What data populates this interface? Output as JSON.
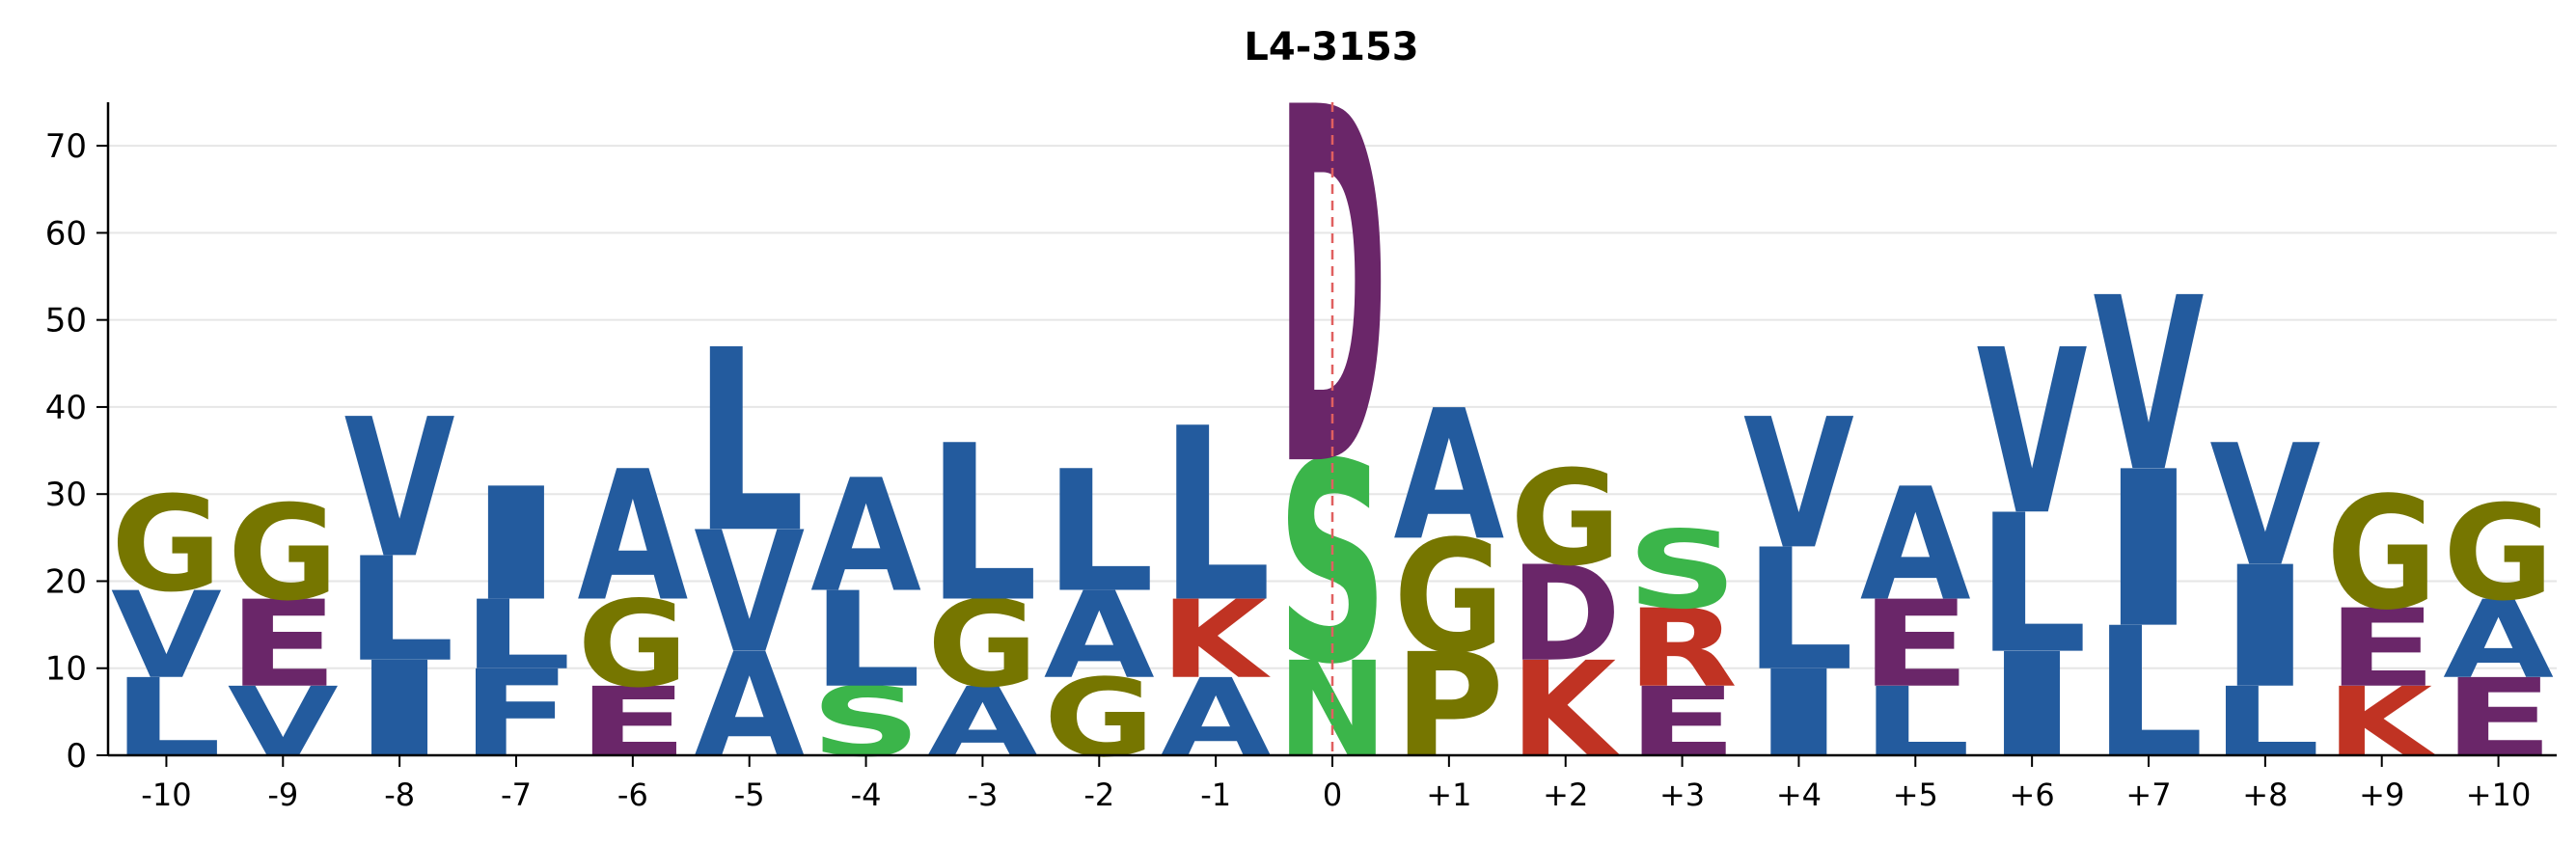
{
  "chart_data": {
    "type": "sequence-logo",
    "title": "L4-3153",
    "xlabel": "",
    "ylabel": "",
    "ylim": [
      0,
      75
    ],
    "yticks": [
      0,
      10,
      20,
      30,
      40,
      50,
      60,
      70
    ],
    "grid": "horizontal",
    "reference_line_at": "0",
    "colors": {
      "L": "#235b9e",
      "V": "#235b9e",
      "I": "#235b9e",
      "A": "#235b9e",
      "F": "#235b9e",
      "G": "#767600",
      "P": "#767600",
      "E": "#6a2669",
      "D": "#6a2669",
      "K": "#c03323",
      "R": "#c03323",
      "S": "#3bb54a",
      "N": "#3bb54a"
    },
    "positions": [
      {
        "label": "-10",
        "stack": [
          {
            "aa": "L",
            "value": 9
          },
          {
            "aa": "V",
            "value": 10
          },
          {
            "aa": "G",
            "value": 11
          }
        ]
      },
      {
        "label": "-9",
        "stack": [
          {
            "aa": "V",
            "value": 8
          },
          {
            "aa": "E",
            "value": 10
          },
          {
            "aa": "G",
            "value": 11
          }
        ]
      },
      {
        "label": "-8",
        "stack": [
          {
            "aa": "I",
            "value": 11
          },
          {
            "aa": "L",
            "value": 12
          },
          {
            "aa": "V",
            "value": 16
          }
        ]
      },
      {
        "label": "-7",
        "stack": [
          {
            "aa": "F",
            "value": 10
          },
          {
            "aa": "L",
            "value": 8
          },
          {
            "aa": "I",
            "value": 13
          }
        ]
      },
      {
        "label": "-6",
        "stack": [
          {
            "aa": "E",
            "value": 8
          },
          {
            "aa": "G",
            "value": 10
          },
          {
            "aa": "A",
            "value": 15
          }
        ]
      },
      {
        "label": "-5",
        "stack": [
          {
            "aa": "A",
            "value": 12
          },
          {
            "aa": "V",
            "value": 14
          },
          {
            "aa": "L",
            "value": 21
          }
        ]
      },
      {
        "label": "-4",
        "stack": [
          {
            "aa": "S",
            "value": 8
          },
          {
            "aa": "L",
            "value": 11
          },
          {
            "aa": "A",
            "value": 13
          }
        ]
      },
      {
        "label": "-3",
        "stack": [
          {
            "aa": "A",
            "value": 8
          },
          {
            "aa": "G",
            "value": 10
          },
          {
            "aa": "L",
            "value": 18
          }
        ]
      },
      {
        "label": "-2",
        "stack": [
          {
            "aa": "G",
            "value": 9
          },
          {
            "aa": "A",
            "value": 10
          },
          {
            "aa": "L",
            "value": 14
          }
        ]
      },
      {
        "label": "-1",
        "stack": [
          {
            "aa": "A",
            "value": 9
          },
          {
            "aa": "K",
            "value": 9
          },
          {
            "aa": "L",
            "value": 20
          }
        ]
      },
      {
        "label": "0",
        "stack": [
          {
            "aa": "N",
            "value": 11
          },
          {
            "aa": "S",
            "value": 23
          },
          {
            "aa": "D",
            "value": 41
          }
        ]
      },
      {
        "label": "+1",
        "stack": [
          {
            "aa": "P",
            "value": 12
          },
          {
            "aa": "G",
            "value": 13
          },
          {
            "aa": "A",
            "value": 15
          }
        ]
      },
      {
        "label": "+2",
        "stack": [
          {
            "aa": "K",
            "value": 11
          },
          {
            "aa": "D",
            "value": 11
          },
          {
            "aa": "G",
            "value": 11
          }
        ]
      },
      {
        "label": "+3",
        "stack": [
          {
            "aa": "E",
            "value": 8
          },
          {
            "aa": "R",
            "value": 9
          },
          {
            "aa": "S",
            "value": 9
          }
        ]
      },
      {
        "label": "+4",
        "stack": [
          {
            "aa": "I",
            "value": 10
          },
          {
            "aa": "L",
            "value": 14
          },
          {
            "aa": "V",
            "value": 15
          }
        ]
      },
      {
        "label": "+5",
        "stack": [
          {
            "aa": "L",
            "value": 8
          },
          {
            "aa": "E",
            "value": 10
          },
          {
            "aa": "A",
            "value": 13
          }
        ]
      },
      {
        "label": "+6",
        "stack": [
          {
            "aa": "I",
            "value": 12
          },
          {
            "aa": "L",
            "value": 16
          },
          {
            "aa": "V",
            "value": 19
          }
        ]
      },
      {
        "label": "+7",
        "stack": [
          {
            "aa": "L",
            "value": 15
          },
          {
            "aa": "I",
            "value": 18
          },
          {
            "aa": "V",
            "value": 20
          }
        ]
      },
      {
        "label": "+8",
        "stack": [
          {
            "aa": "L",
            "value": 8
          },
          {
            "aa": "I",
            "value": 14
          },
          {
            "aa": "V",
            "value": 14
          }
        ]
      },
      {
        "label": "+9",
        "stack": [
          {
            "aa": "K",
            "value": 8
          },
          {
            "aa": "E",
            "value": 9
          },
          {
            "aa": "G",
            "value": 13
          }
        ]
      },
      {
        "label": "+10",
        "stack": [
          {
            "aa": "E",
            "value": 9
          },
          {
            "aa": "A",
            "value": 9
          },
          {
            "aa": "G",
            "value": 11
          }
        ]
      }
    ]
  }
}
